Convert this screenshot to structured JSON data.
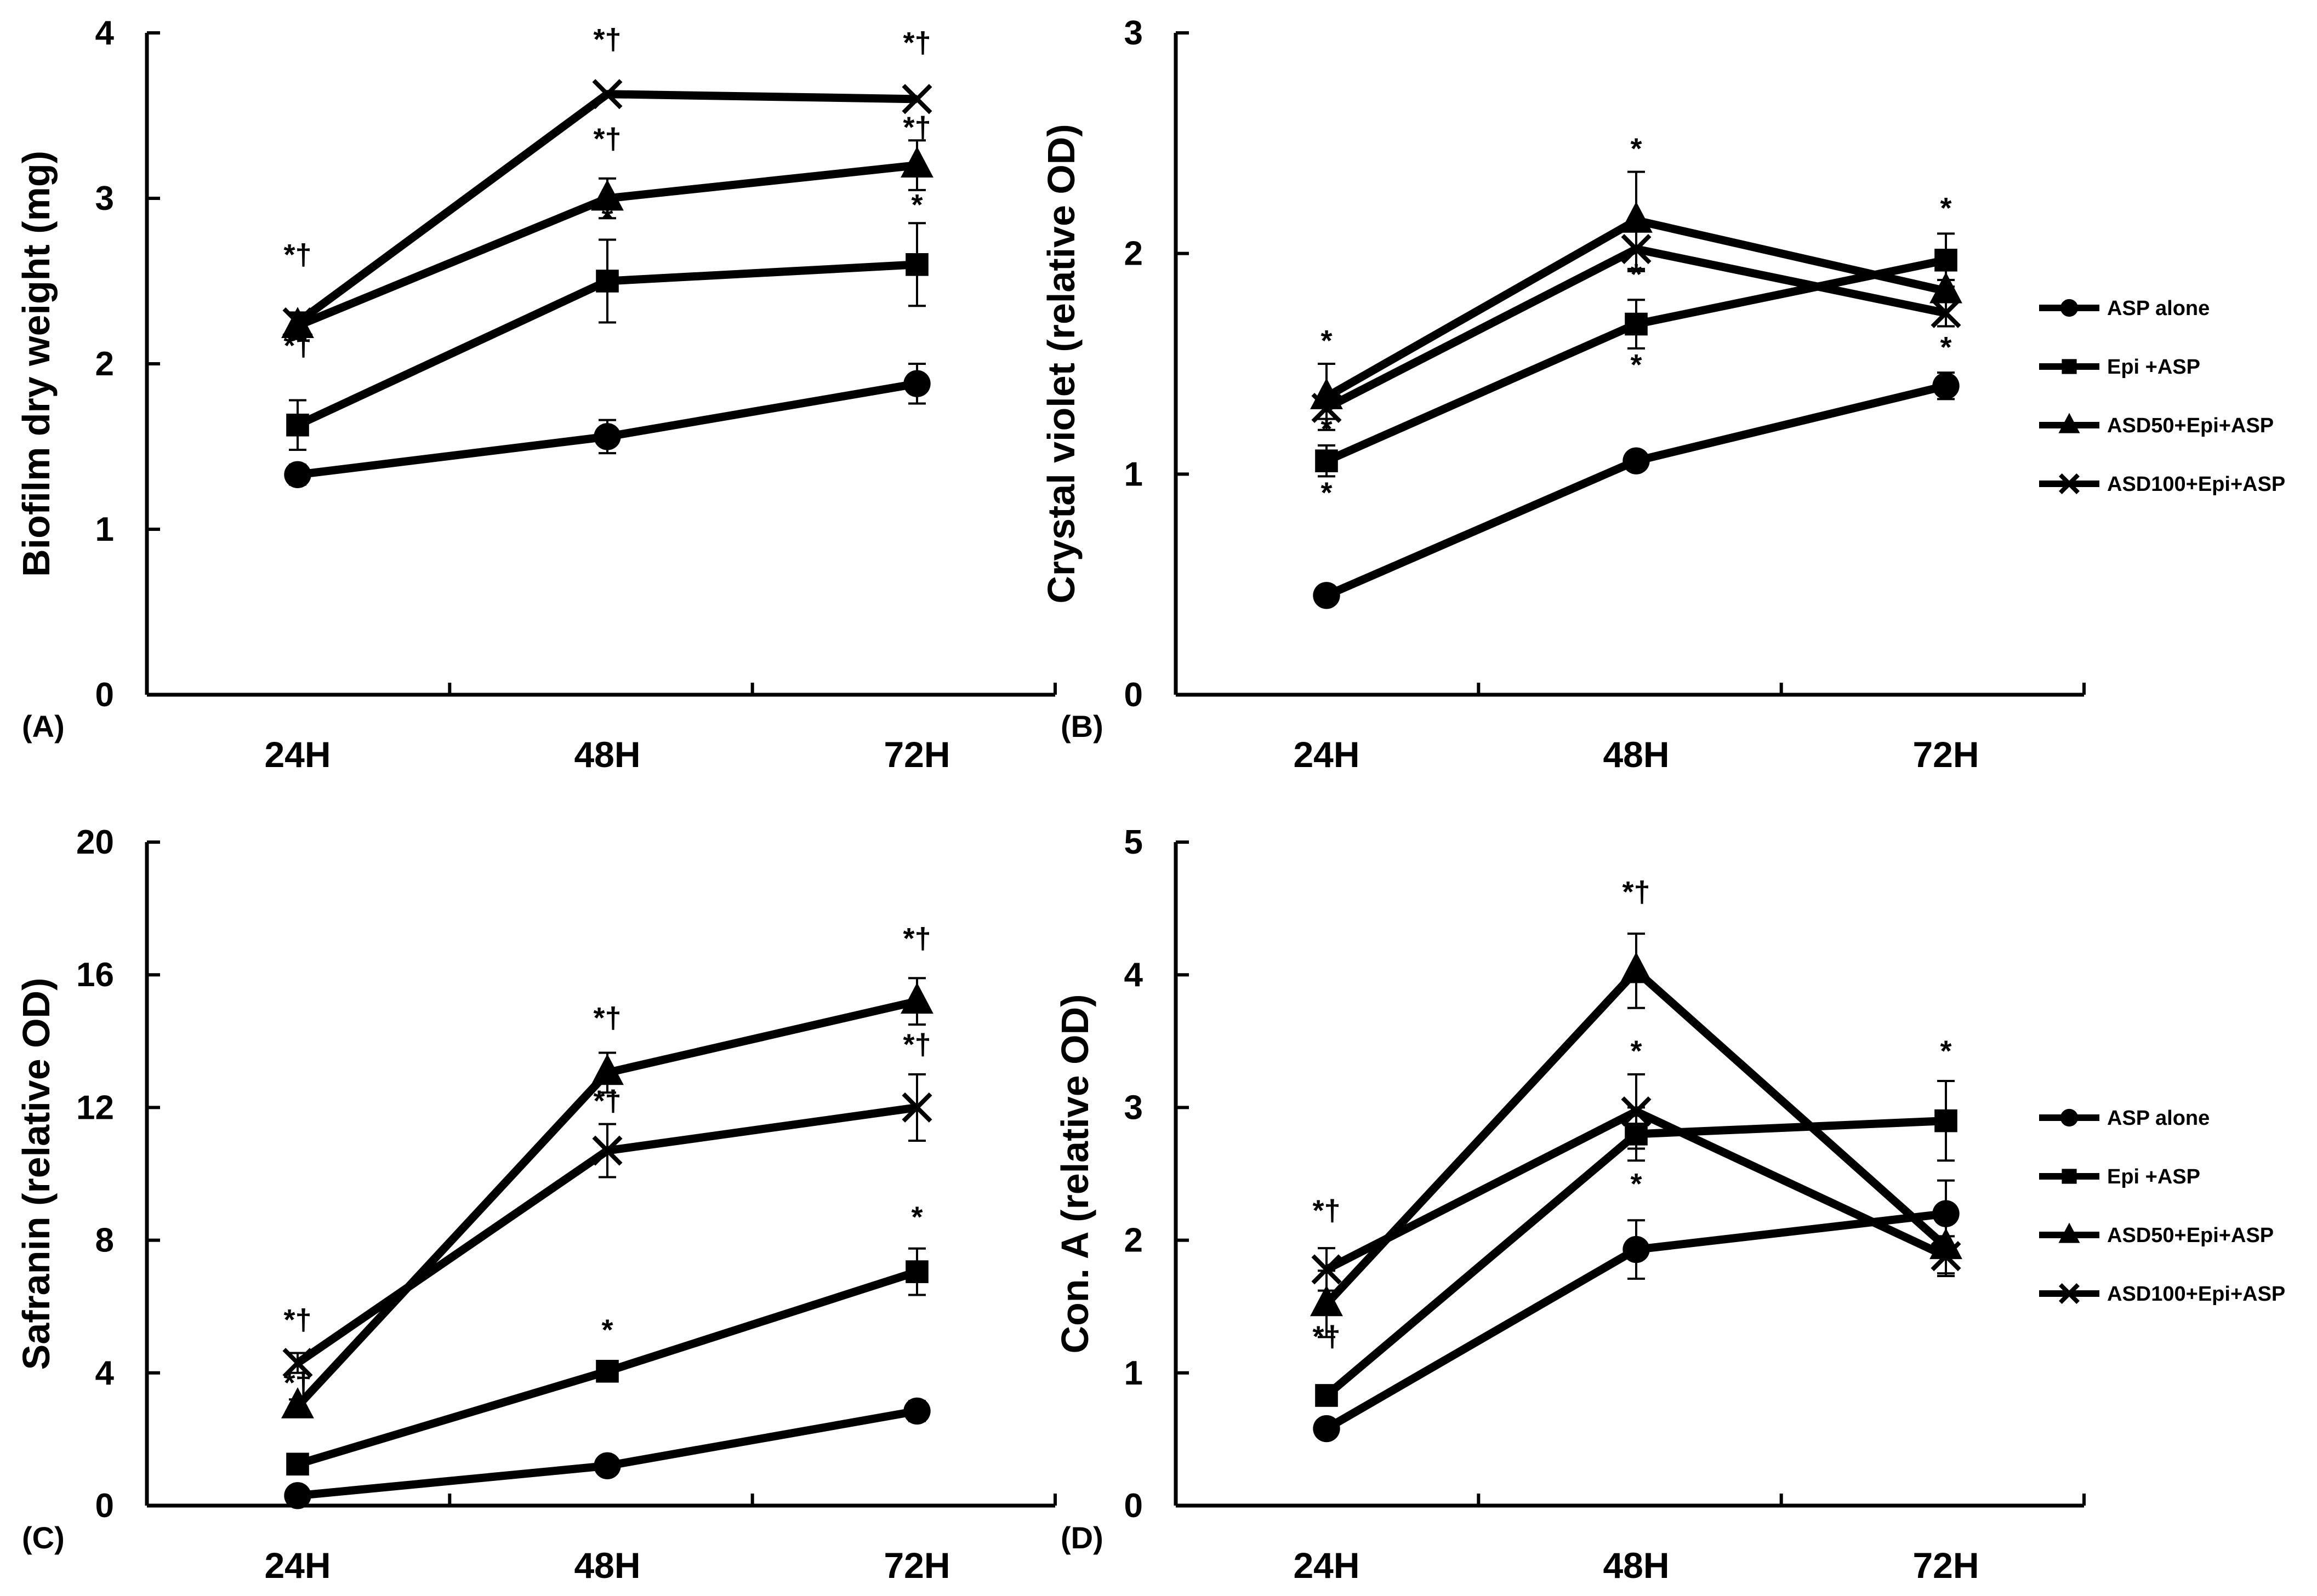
{
  "chart_data": [
    {
      "type": "line",
      "panel_label": "(A)",
      "ylabel": "Biofilm dry weight (mg)",
      "categories": [
        "24H",
        "48H",
        "72H"
      ],
      "ylim": [
        0,
        4
      ],
      "yticks": [
        "0",
        "1",
        "2",
        "3",
        "4"
      ],
      "series": [
        {
          "name": "ASP alone",
          "marker": "circle",
          "values": [
            1.33,
            1.56,
            1.88
          ],
          "errors": [
            0.06,
            0.1,
            0.12
          ]
        },
        {
          "name": "Epi +ASP",
          "marker": "square",
          "values": [
            1.63,
            2.5,
            2.6
          ],
          "errors": [
            0.15,
            0.25,
            0.25
          ]
        },
        {
          "name": "ASD50+Epi+ASP",
          "marker": "triangle",
          "values": [
            2.23,
            3.0,
            3.2
          ],
          "errors": [
            0.08,
            0.12,
            0.15
          ]
        },
        {
          "name": "ASD100+Epi+ASP",
          "marker": "cross",
          "values": [
            2.25,
            3.63,
            3.6
          ],
          "errors": [
            0.05,
            0.0,
            0.0
          ]
        }
      ],
      "annotations": [
        {
          "text": "*†",
          "x": "24H",
          "y": 2.6
        },
        {
          "text": "*†",
          "x": "24H",
          "y": 2.05
        },
        {
          "text": "*†",
          "x": "48H",
          "y": 3.9
        },
        {
          "text": "*†",
          "x": "48H",
          "y": 3.3
        },
        {
          "text": "*",
          "x": "48H",
          "y": 2.82
        },
        {
          "text": "*†",
          "x": "72H",
          "y": 3.88
        },
        {
          "text": "*†",
          "x": "72H",
          "y": 3.37
        },
        {
          "text": "*",
          "x": "72H",
          "y": 2.9
        }
      ],
      "legend": false
    },
    {
      "type": "line",
      "panel_label": "(B)",
      "ylabel": "Crystal violet (relative OD)",
      "categories": [
        "24H",
        "48H",
        "72H"
      ],
      "ylim": [
        0,
        3
      ],
      "yticks": [
        "0",
        "1",
        "2",
        "3"
      ],
      "series": [
        {
          "name": "ASP alone",
          "marker": "circle",
          "values": [
            0.45,
            1.06,
            1.4
          ],
          "errors": [
            0.02,
            0.03,
            0.06
          ]
        },
        {
          "name": "Epi +ASP",
          "marker": "square",
          "values": [
            1.06,
            1.68,
            1.97
          ],
          "errors": [
            0.07,
            0.11,
            0.12
          ]
        },
        {
          "name": "ASD50+Epi+ASP",
          "marker": "triangle",
          "values": [
            1.35,
            2.15,
            1.83
          ],
          "errors": [
            0.15,
            0.22,
            0.05
          ]
        },
        {
          "name": "ASD100+Epi+ASP",
          "marker": "cross",
          "values": [
            1.3,
            2.02,
            1.73
          ],
          "errors": [
            0.05,
            0.1,
            0.06
          ]
        }
      ],
      "annotations": [
        {
          "text": "*",
          "x": "24H",
          "y": 1.56
        },
        {
          "text": "*",
          "x": "24H",
          "y": 1.16
        },
        {
          "text": "*",
          "x": "24H",
          "y": 0.87
        },
        {
          "text": "*",
          "x": "48H",
          "y": 2.43
        },
        {
          "text": "*",
          "x": "48H",
          "y": 1.86
        },
        {
          "text": "*",
          "x": "48H",
          "y": 1.45
        },
        {
          "text": "*",
          "x": "72H",
          "y": 2.16
        },
        {
          "text": "*",
          "x": "72H",
          "y": 1.53
        }
      ],
      "legend": true,
      "legend_position": "right"
    },
    {
      "type": "line",
      "panel_label": "(C)",
      "ylabel": "Safranin (relative OD)",
      "categories": [
        "24H",
        "48H",
        "72H"
      ],
      "ylim": [
        0,
        20
      ],
      "yticks": [
        "0",
        "4",
        "8",
        "12",
        "16",
        "20"
      ],
      "series": [
        {
          "name": "ASP alone",
          "marker": "circle",
          "values": [
            0.3,
            1.2,
            2.85
          ],
          "errors": [
            0.1,
            0.15,
            0.3
          ]
        },
        {
          "name": "Epi +ASP",
          "marker": "square",
          "values": [
            1.25,
            4.05,
            7.05
          ],
          "errors": [
            0.1,
            0.3,
            0.7
          ]
        },
        {
          "name": "ASD50+Epi+ASP",
          "marker": "triangle",
          "values": [
            3.0,
            13.05,
            15.2
          ],
          "errors": [
            0.2,
            0.6,
            0.7
          ]
        },
        {
          "name": "ASD100+Epi+ASP",
          "marker": "cross",
          "values": [
            4.3,
            10.7,
            12.0
          ],
          "errors": [
            0.3,
            0.8,
            1.0
          ]
        }
      ],
      "annotations": [
        {
          "text": "*†",
          "x": "24H",
          "y": 5.3
        },
        {
          "text": "*†",
          "x": "24H",
          "y": 3.4
        },
        {
          "text": "*†",
          "x": "48H",
          "y": 14.4
        },
        {
          "text": "*†",
          "x": "48H",
          "y": 11.9
        },
        {
          "text": "*",
          "x": "48H",
          "y": 5.0
        },
        {
          "text": "*†",
          "x": "72H",
          "y": 16.8
        },
        {
          "text": "*†",
          "x": "72H",
          "y": 13.6
        },
        {
          "text": "*",
          "x": "72H",
          "y": 8.4
        }
      ],
      "legend": false
    },
    {
      "type": "line",
      "panel_label": "(D)",
      "ylabel": "Con. A (relative OD)",
      "categories": [
        "24H",
        "48H",
        "72H"
      ],
      "ylim": [
        0,
        5
      ],
      "yticks": [
        "0",
        "1",
        "2",
        "3",
        "4",
        "5"
      ],
      "series": [
        {
          "name": "ASP alone",
          "marker": "circle",
          "values": [
            0.58,
            1.93,
            2.2
          ],
          "errors": [
            0.03,
            0.22,
            0.25
          ]
        },
        {
          "name": "Epi +ASP",
          "marker": "square",
          "values": [
            0.83,
            2.8,
            2.9
          ],
          "errors": [
            0.03,
            0.2,
            0.3
          ]
        },
        {
          "name": "ASD50+Epi+ASP",
          "marker": "triangle",
          "values": [
            1.52,
            4.03,
            1.95
          ],
          "errors": [
            0.25,
            0.28,
            0.2
          ]
        },
        {
          "name": "ASD100+Epi+ASP",
          "marker": "cross",
          "values": [
            1.78,
            2.97,
            1.88
          ],
          "errors": [
            0.16,
            0.28,
            0.15
          ]
        }
      ],
      "annotations": [
        {
          "text": "*†",
          "x": "24H",
          "y": 2.15
        },
        {
          "text": "*†",
          "x": "24H",
          "y": 1.2
        },
        {
          "text": "*†",
          "x": "48H",
          "y": 4.55
        },
        {
          "text": "*",
          "x": "48H",
          "y": 3.35
        },
        {
          "text": "*",
          "x": "48H",
          "y": 2.35
        },
        {
          "text": "*",
          "x": "72H",
          "y": 3.35
        }
      ],
      "legend": true,
      "legend_position": "right"
    }
  ]
}
